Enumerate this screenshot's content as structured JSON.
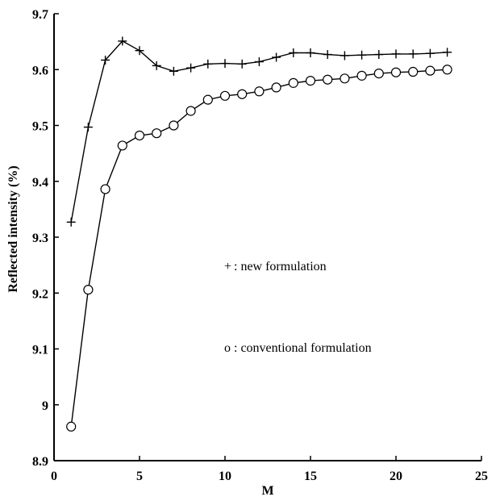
{
  "chart_data": {
    "type": "line",
    "title": "",
    "xlabel": "M",
    "ylabel": "Reflected intensity (%)",
    "xlim": [
      0,
      25
    ],
    "ylim": [
      8.9,
      9.7
    ],
    "xticks": [
      0,
      5,
      10,
      15,
      20,
      25
    ],
    "yticks": [
      8.9,
      9,
      9.1,
      9.2,
      9.3,
      9.4,
      9.5,
      9.6,
      9.7
    ],
    "xtick_labels": [
      "0",
      "5",
      "10",
      "15",
      "20",
      "25"
    ],
    "ytick_labels": [
      "8.9",
      "9",
      "9.1",
      "9.2",
      "9.3",
      "9.4",
      "9.5",
      "9.6",
      "9.7"
    ],
    "grid": false,
    "legend_position": "center-right",
    "legend": [
      {
        "marker": "+",
        "text": ": new formulation"
      },
      {
        "marker": "o",
        "text": ": conventional formulation"
      }
    ],
    "series": [
      {
        "marker": "plus",
        "x": [
          1,
          2,
          3,
          4,
          5,
          6,
          7,
          8,
          9,
          10,
          11,
          12,
          13,
          14,
          15,
          16,
          17,
          18,
          19,
          20,
          21,
          22,
          23
        ],
        "y": [
          9.327,
          9.497,
          9.617,
          9.651,
          9.634,
          9.607,
          9.597,
          9.603,
          9.61,
          9.611,
          9.61,
          9.614,
          9.622,
          9.63,
          9.63,
          9.627,
          9.625,
          9.626,
          9.627,
          9.628,
          9.628,
          9.629,
          9.631
        ]
      },
      {
        "marker": "circle",
        "x": [
          1,
          2,
          3,
          4,
          5,
          6,
          7,
          8,
          9,
          10,
          11,
          12,
          13,
          14,
          15,
          16,
          17,
          18,
          19,
          20,
          21,
          22,
          23
        ],
        "y": [
          8.961,
          9.206,
          9.386,
          9.464,
          9.482,
          9.486,
          9.5,
          9.526,
          9.546,
          9.553,
          9.556,
          9.561,
          9.568,
          9.576,
          9.58,
          9.582,
          9.584,
          9.589,
          9.593,
          9.595,
          9.596,
          9.598,
          9.6
        ]
      }
    ]
  }
}
